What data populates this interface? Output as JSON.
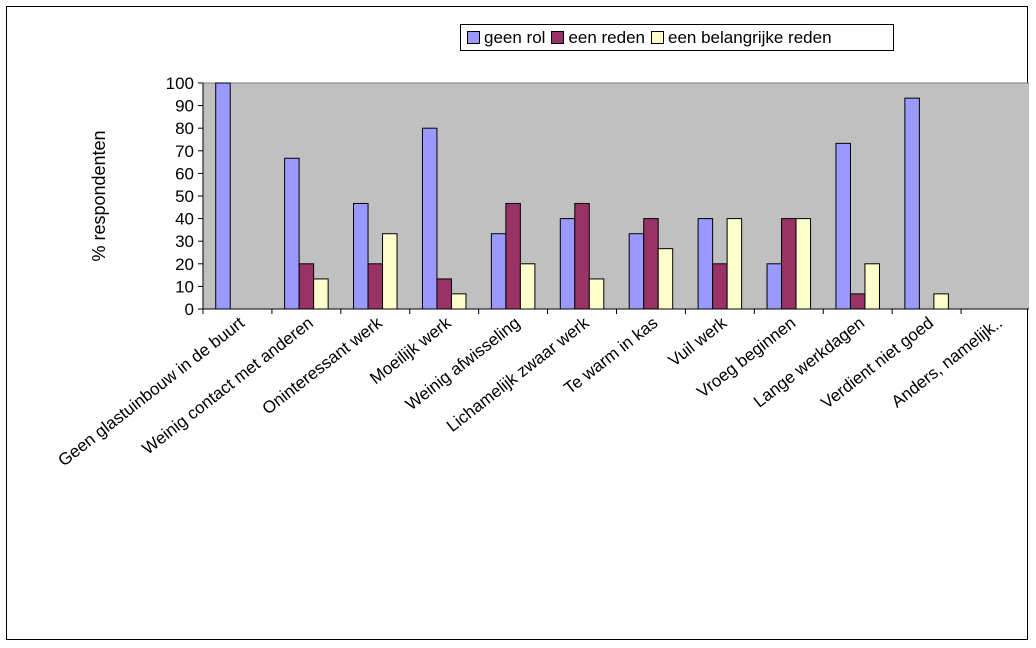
{
  "chart_data": {
    "type": "bar",
    "ylabel": "% respondenten",
    "xlabel": "",
    "ylim": [
      0,
      100
    ],
    "yticks": [
      0,
      10,
      20,
      30,
      40,
      50,
      60,
      70,
      80,
      90,
      100
    ],
    "grid": false,
    "legend_position": "top",
    "plot_background": "#c0c0c0",
    "categories": [
      "Geen glastuinbouw in de buurt",
      "Weinig contact met anderen",
      "Oninteressant werk",
      "Moeilijk werk",
      "Weinig afwisseling",
      "Lichamelijk zwaar werk",
      "Te warm in kas",
      "Vuil werk",
      "Vroeg beginnen",
      "Lange werkdagen",
      "Verdient niet goed",
      "Anders, namelijk.."
    ],
    "series": [
      {
        "name": "geen rol",
        "color": "#9999ff",
        "values": [
          100,
          66.7,
          46.7,
          80,
          33.3,
          40,
          33.3,
          40,
          20,
          73.3,
          93.3,
          0
        ]
      },
      {
        "name": "een reden",
        "color": "#993366",
        "values": [
          0,
          20,
          20,
          13.3,
          46.7,
          46.7,
          40,
          20,
          40,
          6.7,
          0,
          0
        ]
      },
      {
        "name": "een belangrijke reden",
        "color": "#ffffcc",
        "values": [
          0,
          13.3,
          33.3,
          6.7,
          20,
          13.3,
          26.7,
          40,
          40,
          20,
          6.7,
          0
        ]
      }
    ]
  }
}
